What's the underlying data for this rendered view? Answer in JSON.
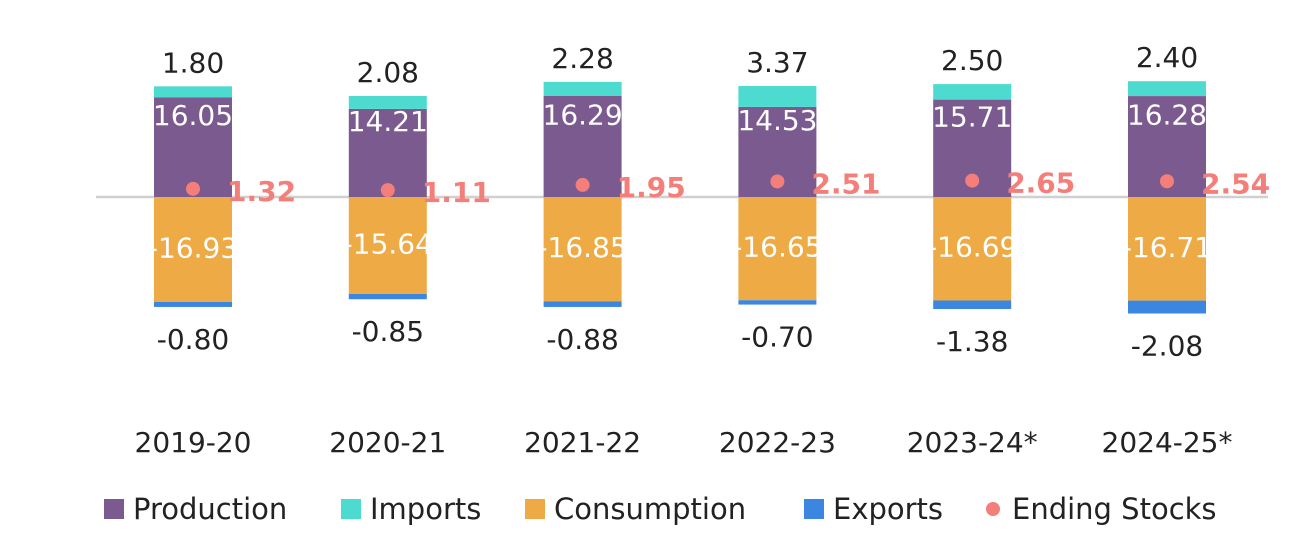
{
  "chart_data": {
    "type": "bar",
    "stacked": true,
    "categories": [
      "2019-20",
      "2020-21",
      "2021-22",
      "2022-23",
      "2023-24*",
      "2024-25*"
    ],
    "series": [
      {
        "name": "Production",
        "type": "bar",
        "color": "#7b5a8f",
        "values": [
          16.05,
          14.21,
          16.29,
          14.53,
          15.71,
          16.28
        ]
      },
      {
        "name": "Imports",
        "type": "bar",
        "color": "#4ddbd0",
        "values": [
          1.8,
          2.08,
          2.28,
          3.37,
          2.5,
          2.4
        ]
      },
      {
        "name": "Consumption",
        "type": "bar",
        "color": "#eeaa44",
        "values": [
          -16.93,
          -15.64,
          -16.85,
          -16.65,
          -16.69,
          -16.71
        ]
      },
      {
        "name": "Exports",
        "type": "bar",
        "color": "#3b86e0",
        "values": [
          -0.8,
          -0.85,
          -0.88,
          -0.7,
          -1.38,
          -2.08
        ]
      },
      {
        "name": "Ending Stocks",
        "type": "scatter",
        "color": "#f47f7a",
        "values": [
          1.32,
          1.11,
          1.95,
          2.51,
          2.65,
          2.54
        ]
      }
    ],
    "value_labels": {
      "Production": [
        "16.05",
        "14.21",
        "16.29",
        "14.53",
        "15.71",
        "16.28"
      ],
      "Imports": [
        "1.80",
        "2.08",
        "2.28",
        "3.37",
        "2.50",
        "2.40"
      ],
      "Consumption": [
        "-16.93",
        "-15.64",
        "-16.85",
        "-16.65",
        "-16.69",
        "-16.71"
      ],
      "Exports": [
        "-0.80",
        "-0.85",
        "-0.88",
        "-0.70",
        "-1.38",
        "-2.08"
      ],
      "Ending Stocks": [
        "1.32",
        "1.11",
        "1.95",
        "2.51",
        "2.65",
        "2.54"
      ]
    },
    "title": "",
    "xlabel": "",
    "ylabel": "",
    "zero_line": true,
    "grid": false,
    "legend_position": "bottom"
  },
  "colors": {
    "label_text": "#222222",
    "inner_label_text": "#ffffff",
    "stocks_label": "#f47f7a",
    "zero_line": "#d0d0d0"
  }
}
